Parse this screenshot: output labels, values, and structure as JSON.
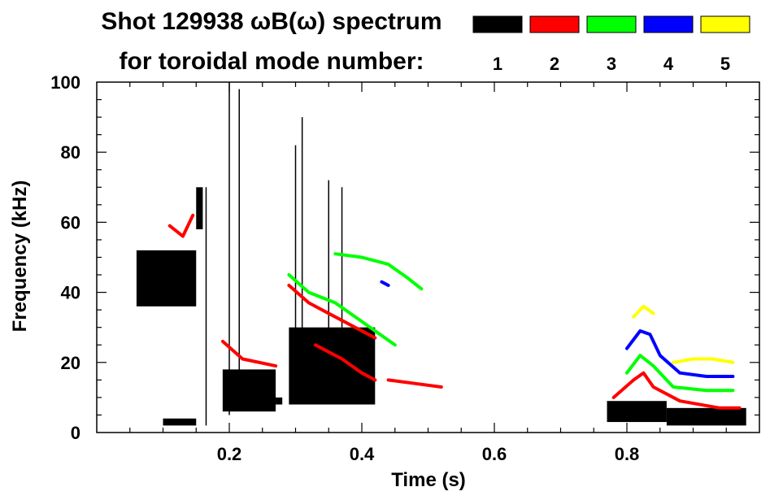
{
  "chart_data": {
    "type": "heatmap",
    "title": "Shot 129938 ωB(ω) spectrum",
    "subtitle": "for toroidal mode number:",
    "xlabel": "Time (s)",
    "ylabel": "Frequency (kHz)",
    "xlim": [
      0.0,
      1.0
    ],
    "ylim": [
      0,
      100
    ],
    "x_ticks": [
      {
        "value": 0.2,
        "label": "0.2"
      },
      {
        "value": 0.4,
        "label": "0.4"
      },
      {
        "value": 0.6,
        "label": "0.6"
      },
      {
        "value": 0.8,
        "label": "0.8"
      }
    ],
    "y_ticks": [
      {
        "value": 0,
        "label": "0"
      },
      {
        "value": 20,
        "label": "20"
      },
      {
        "value": 40,
        "label": "40"
      },
      {
        "value": 60,
        "label": "60"
      },
      {
        "value": 80,
        "label": "80"
      },
      {
        "value": 100,
        "label": "100"
      }
    ],
    "legend": {
      "placement": "top-right",
      "entries": [
        {
          "mode": "1",
          "color": "#000000"
        },
        {
          "mode": "2",
          "color": "#ff0000"
        },
        {
          "mode": "3",
          "color": "#00ff00"
        },
        {
          "mode": "4",
          "color": "#0000ff"
        },
        {
          "mode": "5",
          "color": "#ffff00"
        }
      ]
    },
    "series": [
      {
        "name": "n=1",
        "color": "#000000",
        "blobs": [
          {
            "t0": 0.06,
            "t1": 0.15,
            "f0": 36,
            "f1": 52
          },
          {
            "t0": 0.15,
            "t1": 0.16,
            "f0": 58,
            "f1": 70
          },
          {
            "t0": 0.1,
            "t1": 0.15,
            "f0": 2,
            "f1": 4
          },
          {
            "t0": 0.19,
            "t1": 0.27,
            "f0": 6,
            "f1": 18
          },
          {
            "t0": 0.27,
            "t1": 0.28,
            "f0": 8,
            "f1": 10
          },
          {
            "t0": 0.29,
            "t1": 0.42,
            "f0": 8,
            "f1": 30
          },
          {
            "t0": 0.77,
            "t1": 0.86,
            "f0": 3,
            "f1": 9
          },
          {
            "t0": 0.86,
            "t1": 0.98,
            "f0": 2,
            "f1": 7
          }
        ],
        "lines": [
          {
            "t": 0.165,
            "f0": 2,
            "f1": 70
          },
          {
            "t": 0.2,
            "f0": 5,
            "f1": 100
          },
          {
            "t": 0.215,
            "f0": 10,
            "f1": 98
          },
          {
            "t": 0.3,
            "f0": 10,
            "f1": 82
          },
          {
            "t": 0.31,
            "f0": 12,
            "f1": 90
          },
          {
            "t": 0.35,
            "f0": 25,
            "f1": 72
          },
          {
            "t": 0.37,
            "f0": 30,
            "f1": 70
          }
        ]
      },
      {
        "name": "n=2",
        "color": "#ff0000",
        "tracks": [
          [
            [
              0.11,
              59
            ],
            [
              0.13,
              56
            ],
            [
              0.145,
              62
            ]
          ],
          [
            [
              0.19,
              26
            ],
            [
              0.22,
              21
            ],
            [
              0.27,
              19
            ]
          ],
          [
            [
              0.29,
              42
            ],
            [
              0.32,
              37
            ],
            [
              0.36,
              33
            ],
            [
              0.4,
              29
            ],
            [
              0.42,
              27
            ]
          ],
          [
            [
              0.33,
              25
            ],
            [
              0.37,
              21
            ],
            [
              0.4,
              17
            ],
            [
              0.42,
              15
            ]
          ],
          [
            [
              0.44,
              15
            ],
            [
              0.48,
              14
            ],
            [
              0.52,
              13
            ]
          ],
          [
            [
              0.78,
              10
            ],
            [
              0.81,
              15
            ],
            [
              0.825,
              17
            ],
            [
              0.84,
              13
            ],
            [
              0.88,
              9
            ],
            [
              0.94,
              7
            ],
            [
              0.97,
              7
            ]
          ]
        ]
      },
      {
        "name": "n=3",
        "color": "#00ff00",
        "tracks": [
          [
            [
              0.36,
              51
            ],
            [
              0.4,
              50
            ],
            [
              0.44,
              48
            ],
            [
              0.47,
              44
            ],
            [
              0.49,
              41
            ]
          ],
          [
            [
              0.29,
              45
            ],
            [
              0.32,
              40
            ],
            [
              0.36,
              37
            ],
            [
              0.39,
              33
            ],
            [
              0.42,
              29
            ],
            [
              0.45,
              25
            ]
          ],
          [
            [
              0.8,
              17
            ],
            [
              0.82,
              22
            ],
            [
              0.84,
              19
            ],
            [
              0.87,
              13
            ],
            [
              0.92,
              12
            ],
            [
              0.96,
              12
            ]
          ]
        ]
      },
      {
        "name": "n=4",
        "color": "#0000ff",
        "tracks": [
          [
            [
              0.8,
              24
            ],
            [
              0.82,
              29
            ],
            [
              0.835,
              28
            ],
            [
              0.85,
              22
            ],
            [
              0.88,
              17
            ],
            [
              0.92,
              16
            ],
            [
              0.96,
              16
            ]
          ],
          [
            [
              0.43,
              43
            ],
            [
              0.44,
              42
            ]
          ]
        ]
      },
      {
        "name": "n=5",
        "color": "#ffff00",
        "tracks": [
          [
            [
              0.81,
              33
            ],
            [
              0.825,
              36
            ],
            [
              0.84,
              34
            ]
          ],
          [
            [
              0.87,
              20
            ],
            [
              0.9,
              21
            ],
            [
              0.93,
              21
            ],
            [
              0.96,
              20
            ]
          ]
        ]
      }
    ]
  }
}
